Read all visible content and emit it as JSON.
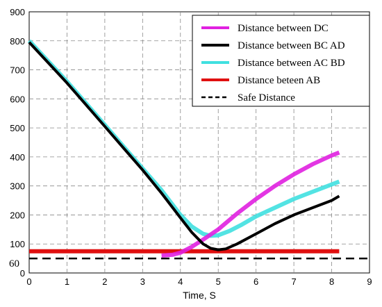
{
  "chart_data": {
    "type": "line",
    "xlabel": "Time, S",
    "ylabel": "",
    "xlim": [
      0,
      9
    ],
    "ylim": [
      0,
      900
    ],
    "xticks": [
      "0",
      "1",
      "2",
      "3",
      "4",
      "5",
      "6",
      "7",
      "8",
      "9"
    ],
    "yticks": [
      "0",
      "100",
      "200",
      "300",
      "400",
      "500",
      "600",
      "700",
      "800",
      "900"
    ],
    "extra_y_label": "60",
    "grid": true,
    "legend_position": "top-right",
    "series": [
      {
        "name": "Distance between DC",
        "color": "#e020e0",
        "x": [
          3.5,
          3.8,
          4.0,
          4.3,
          4.6,
          5.0,
          5.5,
          6.0,
          6.5,
          7.0,
          7.5,
          8.0,
          8.2
        ],
        "y": [
          60,
          63,
          70,
          90,
          115,
          150,
          205,
          255,
          300,
          340,
          375,
          405,
          415
        ]
      },
      {
        "name": "Distance between BC AD",
        "color": "#000000",
        "x": [
          0,
          0.5,
          1,
          1.5,
          2,
          2.5,
          3,
          3.5,
          4,
          4.3,
          4.6,
          4.8,
          5.0,
          5.2,
          5.5,
          6.0,
          6.5,
          7.0,
          7.5,
          8.0,
          8.2
        ],
        "y": [
          795,
          725,
          655,
          580,
          505,
          430,
          355,
          275,
          190,
          140,
          100,
          85,
          80,
          83,
          100,
          135,
          170,
          200,
          225,
          250,
          265
        ]
      },
      {
        "name": "Distance between AC BD",
        "color": "#40e0e0",
        "x": [
          0,
          0.5,
          1,
          1.5,
          2,
          2.5,
          3,
          3.5,
          4,
          4.3,
          4.6,
          4.8,
          5.0,
          5.3,
          5.6,
          6.0,
          6.5,
          7.0,
          7.5,
          8.0,
          8.2
        ],
        "y": [
          800,
          730,
          660,
          585,
          510,
          435,
          360,
          285,
          200,
          160,
          135,
          128,
          130,
          145,
          165,
          195,
          225,
          255,
          280,
          305,
          315
        ]
      },
      {
        "name": "Distance beteen AB",
        "color": "#e01010",
        "x": [
          0,
          8.2
        ],
        "y": [
          75,
          75
        ]
      },
      {
        "name": "Safe Distance",
        "color": "#000000",
        "dashed": true,
        "x": [
          0,
          9
        ],
        "y": [
          50,
          50
        ]
      }
    ]
  }
}
